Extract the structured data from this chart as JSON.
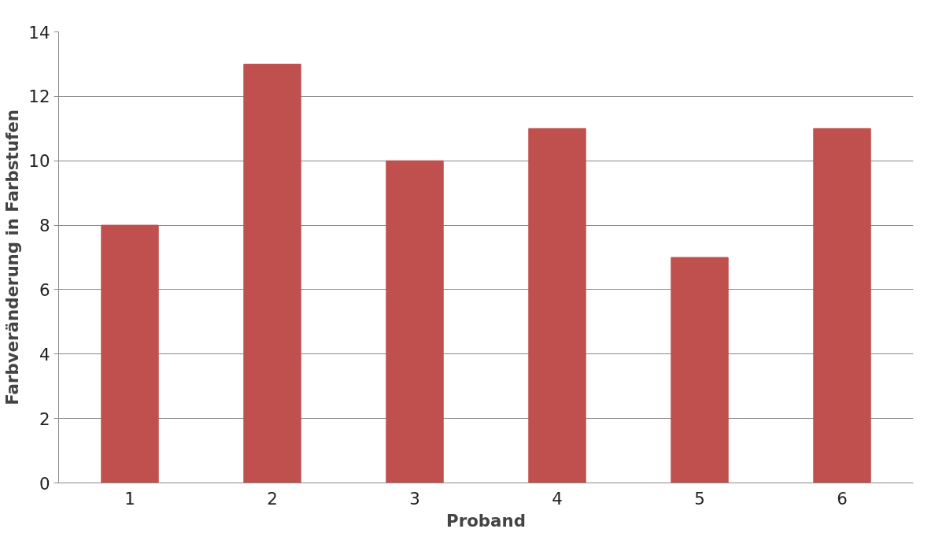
{
  "chart_data": {
    "type": "bar",
    "xlabel": "Proband",
    "ylabel": "Farbveränderung in Farbstufen",
    "categories": [
      "1",
      "2",
      "3",
      "4",
      "5",
      "6"
    ],
    "values": [
      8,
      13,
      10,
      11,
      7,
      11
    ],
    "color": "#c0504d",
    "ylim": [
      0,
      14
    ],
    "yticks": [
      0,
      2,
      4,
      6,
      8,
      10,
      12,
      14
    ],
    "grid": "y"
  }
}
